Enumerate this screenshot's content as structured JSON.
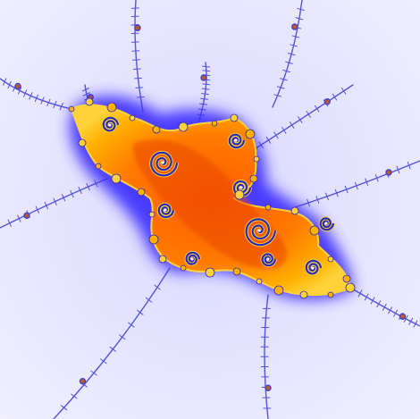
{
  "image": {
    "subject": "fractal",
    "palette": {
      "background": "#ecebff",
      "halo": "#3a2cff",
      "filament": "#5a5ae0",
      "core_dark": "#d23a00",
      "core": "#ff6a00",
      "core_light": "#ffb000",
      "edge_yellow": "#ffd23a"
    }
  }
}
